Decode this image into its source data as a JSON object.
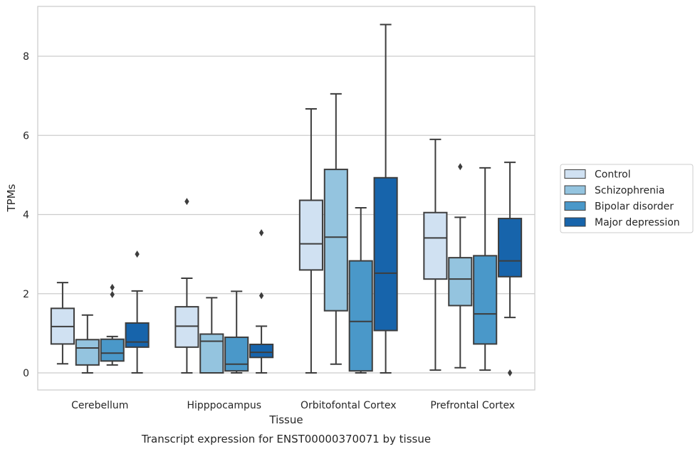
{
  "chart_data": {
    "type": "boxplot",
    "title": "",
    "caption": "Transcript expression for ENST00000370071 by tissue",
    "xlabel": "Tissue",
    "ylabel": "TPMs",
    "ylim": [
      -0.4,
      9.25
    ],
    "yticks": [
      0,
      2,
      4,
      6,
      8
    ],
    "categories": [
      "Cerebellum",
      "Hipppocampus",
      "Orbitofontal Cortex",
      "Prefrontal Cortex"
    ],
    "grid": "horizontal",
    "legend_position": "right",
    "series": [
      {
        "name": "Control",
        "color": "#d0e1f2",
        "boxes": [
          {
            "whislo": 0.23,
            "q1": 0.73,
            "med": 1.17,
            "q3": 1.63,
            "whishi": 2.28,
            "fliers": []
          },
          {
            "whislo": 0.0,
            "q1": 0.65,
            "med": 1.18,
            "q3": 1.67,
            "whishi": 2.39,
            "fliers": [
              4.33
            ]
          },
          {
            "whislo": 0.0,
            "q1": 2.6,
            "med": 3.26,
            "q3": 4.36,
            "whishi": 6.67,
            "fliers": []
          },
          {
            "whislo": 0.07,
            "q1": 2.37,
            "med": 3.41,
            "q3": 4.05,
            "whishi": 5.9,
            "fliers": []
          }
        ]
      },
      {
        "name": "Schizophrenia",
        "color": "#94c4df",
        "boxes": [
          {
            "whislo": 0.0,
            "q1": 0.2,
            "med": 0.63,
            "q3": 0.84,
            "whishi": 1.46,
            "fliers": []
          },
          {
            "whislo": 0.0,
            "q1": 0.0,
            "med": 0.8,
            "q3": 0.98,
            "whishi": 1.9,
            "fliers": []
          },
          {
            "whislo": 0.22,
            "q1": 1.57,
            "med": 3.43,
            "q3": 5.14,
            "whishi": 7.05,
            "fliers": []
          },
          {
            "whislo": 0.13,
            "q1": 1.7,
            "med": 2.37,
            "q3": 2.91,
            "whishi": 3.93,
            "fliers": [
              5.21
            ]
          }
        ]
      },
      {
        "name": "Bipolar disorder",
        "color": "#4a98c9",
        "boxes": [
          {
            "whislo": 0.2,
            "q1": 0.3,
            "med": 0.5,
            "q3": 0.85,
            "whishi": 0.92,
            "fliers": [
              1.98,
              2.16
            ]
          },
          {
            "whislo": 0.0,
            "q1": 0.05,
            "med": 0.22,
            "q3": 0.9,
            "whishi": 2.06,
            "fliers": []
          },
          {
            "whislo": 0.0,
            "q1": 0.05,
            "med": 1.3,
            "q3": 2.83,
            "whishi": 4.17,
            "fliers": []
          },
          {
            "whislo": 0.07,
            "q1": 0.73,
            "med": 1.49,
            "q3": 2.96,
            "whishi": 5.18,
            "fliers": []
          }
        ]
      },
      {
        "name": "Major depression",
        "color": "#1764ab",
        "boxes": [
          {
            "whislo": 0.0,
            "q1": 0.65,
            "med": 0.78,
            "q3": 1.26,
            "whishi": 2.07,
            "fliers": [
              3.0
            ]
          },
          {
            "whislo": 0.0,
            "q1": 0.39,
            "med": 0.52,
            "q3": 0.72,
            "whishi": 1.18,
            "fliers": [
              1.95,
              3.54
            ]
          },
          {
            "whislo": 0.0,
            "q1": 1.07,
            "med": 2.52,
            "q3": 4.93,
            "whishi": 8.8,
            "fliers": []
          },
          {
            "whislo": 1.4,
            "q1": 2.43,
            "med": 2.83,
            "q3": 3.9,
            "whishi": 5.32,
            "fliers": [
              0.0
            ]
          }
        ]
      }
    ]
  }
}
